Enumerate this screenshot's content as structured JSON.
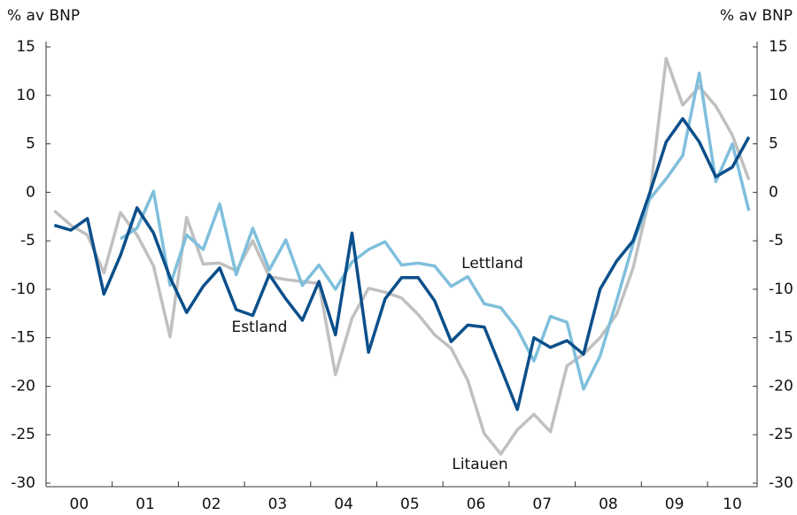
{
  "chart_data": {
    "type": "line",
    "ylabel": "% av BNP",
    "y2label": "% av BNP",
    "x": [
      2000,
      2000.25,
      2000.5,
      2000.75,
      2001,
      2001.25,
      2001.5,
      2001.75,
      2002,
      2002.25,
      2002.5,
      2002.75,
      2003,
      2003.25,
      2003.5,
      2003.75,
      2004,
      2004.25,
      2004.5,
      2004.75,
      2005,
      2005.25,
      2005.5,
      2005.75,
      2006,
      2006.25,
      2006.5,
      2006.75,
      2007,
      2007.25,
      2007.5,
      2007.75,
      2008,
      2008.25,
      2008.5,
      2008.75,
      2009,
      2009.25,
      2009.5,
      2009.75,
      2010,
      2010.25,
      2010.5
    ],
    "xlim": [
      1999.875,
      2010.625
    ],
    "xticks": [
      {
        "value": 2000.375,
        "label": "00"
      },
      {
        "value": 2001.375,
        "label": "01"
      },
      {
        "value": 2002.375,
        "label": "02"
      },
      {
        "value": 2003.375,
        "label": "03"
      },
      {
        "value": 2004.375,
        "label": "04"
      },
      {
        "value": 2005.375,
        "label": "05"
      },
      {
        "value": 2006.375,
        "label": "06"
      },
      {
        "value": 2007.375,
        "label": "07"
      },
      {
        "value": 2008.375,
        "label": "08"
      },
      {
        "value": 2009.375,
        "label": "09"
      },
      {
        "value": 2010.25,
        "label": "10"
      }
    ],
    "ylim": [
      -30,
      15
    ],
    "yticks": [
      15,
      10,
      5,
      0,
      -5,
      -10,
      -15,
      -20,
      -25,
      -30
    ],
    "y2lim": [
      -30,
      15
    ],
    "y2ticks": [
      15,
      10,
      5,
      0,
      -5,
      -10,
      -15,
      -20,
      -25,
      -30
    ],
    "grid": false,
    "annotations": [
      "Estland",
      "Lettland",
      "Litauen"
    ],
    "series": [
      {
        "name": "Estland",
        "color": "#0b4f8a",
        "values": [
          -3.4,
          -3.9,
          -2.7,
          -10.5,
          -6.5,
          -1.6,
          -4.2,
          -8.8,
          -12.4,
          -9.7,
          -7.8,
          -12.1,
          -12.7,
          -8.5,
          -11,
          -13.2,
          -9.2,
          -14.7,
          -4.2,
          -16.5,
          -11,
          -8.8,
          -8.8,
          -11.2,
          -15.4,
          -13.7,
          -13.9,
          -18.1,
          -22.4,
          -15,
          -16,
          -15.3,
          -16.7,
          -10,
          -7.1,
          -5,
          -0.1,
          5.2,
          7.6,
          5.2,
          1.6,
          2.6,
          5.7
        ]
      },
      {
        "name": "Lettland",
        "color": "#7fbfdc",
        "values": [
          null,
          null,
          null,
          null,
          -4.8,
          -3.7,
          0.1,
          -9.6,
          -4.4,
          -5.9,
          -1.2,
          -8.5,
          -3.7,
          -8,
          -4.9,
          -9.6,
          -7.5,
          -10,
          -7.2,
          -5.9,
          -5.1,
          -7.5,
          -7.3,
          -7.6,
          -9.7,
          -8.7,
          -11.5,
          -11.9,
          -14.1,
          -17.4,
          -12.8,
          -13.4,
          -20.3,
          -16.9,
          -11.2,
          -5.3,
          -0.7,
          1.4,
          3.8,
          12.3,
          1.1,
          5,
          -1.9
        ]
      },
      {
        "name": "Litauen",
        "color": "#c0c0c0",
        "values": [
          -1.9,
          -3.4,
          -4.4,
          -8.3,
          -2.1,
          -4.4,
          -7.6,
          -14.9,
          -2.6,
          -7.4,
          -7.3,
          -8.1,
          -5,
          -8.7,
          -9,
          -9.2,
          -9.4,
          -18.8,
          -13,
          -9.9,
          -10.3,
          -10.9,
          -12.6,
          -14.7,
          -16.1,
          -19.4,
          -24.9,
          -27,
          -24.5,
          -22.9,
          -24.7,
          -17.9,
          -16.7,
          -15,
          -12.6,
          -7.8,
          -0.5,
          13.8,
          9,
          10.9,
          8.9,
          5.9,
          1.3
        ]
      }
    ]
  }
}
